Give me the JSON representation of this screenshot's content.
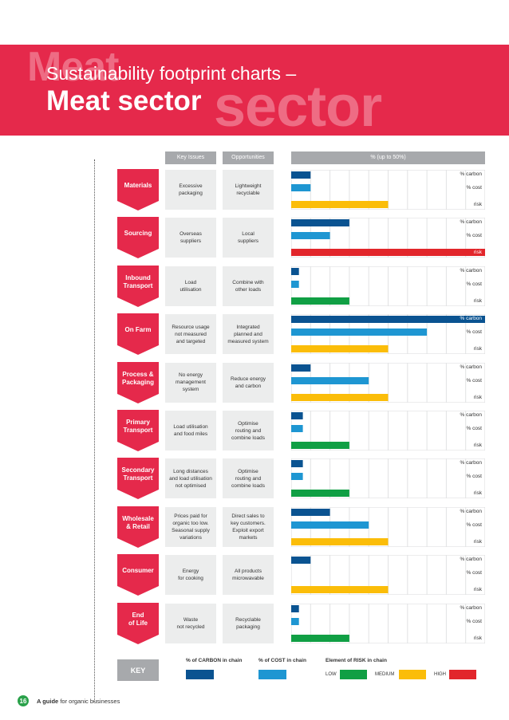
{
  "header": {
    "ghost_left": "Meat",
    "ghost_right": "sector",
    "subtitle": "Sustainability footprint charts –",
    "title": "Meat sector"
  },
  "columns": {
    "key_issues": "Key Issues",
    "opportunities": "Opportunities",
    "percent": "% (up to 50%)"
  },
  "metric_labels": {
    "carbon": "% carbon",
    "cost": "% cost",
    "risk": "risk"
  },
  "colors": {
    "carbon": "#0a5391",
    "cost": "#1e96d2",
    "risk_low": "#109f44",
    "risk_medium": "#fbbd09",
    "risk_high": "#e2262b",
    "stage": "#e5294b"
  },
  "chart_data": {
    "type": "bar",
    "title": "% (up to 50%)",
    "xlim": [
      0,
      50
    ],
    "risk_levels": [
      "LOW",
      "MEDIUM",
      "HIGH"
    ],
    "stages": [
      {
        "stage": "Materials",
        "key_issue": "Excessive\npackaging",
        "opportunity": "Lightweight\nrecyclable",
        "carbon": 5,
        "cost": 5,
        "risk": "MEDIUM"
      },
      {
        "stage": "Sourcing",
        "key_issue": "Overseas\nsuppliers",
        "opportunity": "Local\nsuppliers",
        "carbon": 15,
        "cost": 10,
        "risk": "HIGH"
      },
      {
        "stage": "Inbound\nTransport",
        "key_issue": "Load\nutilisation",
        "opportunity": "Combine with\nother loads",
        "carbon": 2,
        "cost": 2,
        "risk": "LOW"
      },
      {
        "stage": "On Farm",
        "key_issue": "Resource usage\nnot measured\nand targeted",
        "opportunity": "Integrated\nplanned and\nmeasured system",
        "carbon": 50,
        "cost": 35,
        "risk": "MEDIUM"
      },
      {
        "stage": "Process &\nPackaging",
        "key_issue": "No energy\nmanagement\nsystem",
        "opportunity": "Reduce energy\nand carbon",
        "carbon": 5,
        "cost": 20,
        "risk": "MEDIUM"
      },
      {
        "stage": "Primary\nTransport",
        "key_issue": "Load utilisation\nand food miles",
        "opportunity": "Optimise\nrouting and\ncombine loads",
        "carbon": 3,
        "cost": 3,
        "risk": "LOW"
      },
      {
        "stage": "Secondary\nTransport",
        "key_issue": "Long distances\nand load utilisation\nnot optimised",
        "opportunity": "Optimise\nrouting and\ncombine loads",
        "carbon": 3,
        "cost": 3,
        "risk": "LOW"
      },
      {
        "stage": "Wholesale\n& Retail",
        "key_issue": "Prices paid for\norganic too low.\nSeasonal supply\nvariations",
        "opportunity": "Direct sales to\nkey customers.\nExploit export\nmarkets",
        "carbon": 10,
        "cost": 20,
        "risk": "MEDIUM"
      },
      {
        "stage": "Consumer",
        "key_issue": "Energy\nfor cooking",
        "opportunity": "All products\nmicrowavable",
        "carbon": 5,
        "cost": 0,
        "risk": "MEDIUM"
      },
      {
        "stage": "End\nof Life",
        "key_issue": "Waste\nnot recycled",
        "opportunity": "Recyclable\npackaging",
        "carbon": 2,
        "cost": 2,
        "risk": "LOW"
      }
    ]
  },
  "key": {
    "label": "KEY",
    "carbon_label": "% of CARBON in chain",
    "cost_label": "% of COST in chain",
    "risk_label": "Element of RISK in chain",
    "low": "LOW",
    "medium": "MEDIUM",
    "high": "HIGH"
  },
  "footer": {
    "page_number": "16",
    "guide_bold": "A guide",
    "guide_rest": " for organic businesses"
  }
}
